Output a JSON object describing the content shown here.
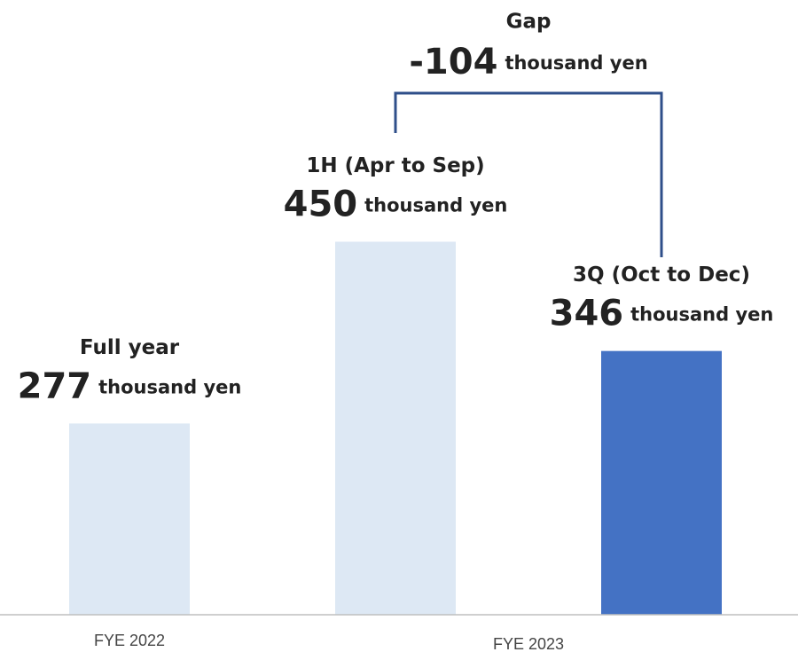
{
  "chart_data": {
    "type": "bar",
    "categories": [
      "Full year",
      "1H (Apr to Sep)",
      "3Q (Oct to Dec)"
    ],
    "values": [
      277,
      450,
      346
    ],
    "colors": [
      "#dde8f4",
      "#dde8f4",
      "#4472c4"
    ],
    "unit": "thousand yen",
    "groups": [
      {
        "name": "FYE 2022",
        "size": 1
      },
      {
        "name": "FYE 2023",
        "size": 2
      }
    ],
    "annotation": {
      "label": "Gap",
      "value": -104,
      "unit": "thousand yen"
    },
    "ylim": [
      95,
      680
    ]
  }
}
